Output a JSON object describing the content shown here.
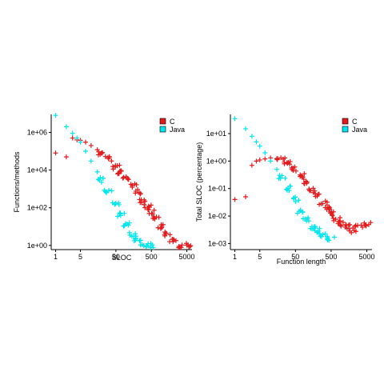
{
  "chart_data": [
    {
      "type": "scatter",
      "xlabel": "SLOC",
      "ylabel": "Functions/methods",
      "x_scale": "log",
      "y_scale": "log",
      "xlim": [
        0.75,
        7000
      ],
      "ylim": [
        0.6,
        9000000
      ],
      "x_ticks": [
        {
          "v": 1,
          "label": "1"
        },
        {
          "v": 5,
          "label": "5"
        },
        {
          "v": 50,
          "label": "50"
        },
        {
          "v": 500,
          "label": "500"
        },
        {
          "v": 5000,
          "label": "5000"
        }
      ],
      "y_ticks": [
        {
          "v": 1,
          "label": "1e+00"
        },
        {
          "v": 100,
          "label": "1e+02"
        },
        {
          "v": 10000,
          "label": "1e+04"
        },
        {
          "v": 1000000,
          "label": "1e+06"
        }
      ],
      "legend_position": "top-right",
      "series": [
        {
          "name": "C",
          "color": "#e31a1c",
          "marker": "+",
          "points": [
            [
              1,
              80000
            ],
            [
              2,
              50000
            ],
            [
              3,
              500000
            ],
            [
              4,
              400000
            ],
            [
              5,
              380000
            ],
            [
              7,
              300000
            ],
            [
              10,
              200000
            ],
            [
              15,
              120000
            ],
            [
              20,
              80000
            ],
            [
              30,
              40000
            ],
            [
              50,
              15000
            ],
            [
              70,
              8000
            ],
            [
              100,
              3500
            ],
            [
              150,
              1500
            ],
            [
              200,
              700
            ],
            [
              300,
              250
            ],
            [
              400,
              120
            ],
            [
              500,
              60
            ],
            [
              700,
              25
            ],
            [
              1000,
              10
            ],
            [
              1500,
              4
            ],
            [
              2000,
              2
            ],
            [
              3000,
              1
            ],
            [
              5000,
              1
            ]
          ]
        },
        {
          "name": "Java",
          "color": "#00e5ee",
          "marker": "+",
          "points": [
            [
              1,
              8000000
            ],
            [
              2,
              2000000
            ],
            [
              3,
              900000
            ],
            [
              4,
              500000
            ],
            [
              5,
              300000
            ],
            [
              7,
              100000
            ],
            [
              10,
              30000
            ],
            [
              15,
              8000
            ],
            [
              20,
              3000
            ],
            [
              30,
              800
            ],
            [
              50,
              150
            ],
            [
              70,
              40
            ],
            [
              100,
              12
            ],
            [
              150,
              4
            ],
            [
              200,
              2
            ],
            [
              300,
              1
            ],
            [
              500,
              1
            ]
          ]
        }
      ]
    },
    {
      "type": "scatter",
      "xlabel": "Function length",
      "ylabel": "Total SLOC (percentage)",
      "x_scale": "log",
      "y_scale": "log",
      "xlim": [
        0.75,
        7000
      ],
      "ylim": [
        0.0006,
        50
      ],
      "x_ticks": [
        {
          "v": 1,
          "label": "1"
        },
        {
          "v": 5,
          "label": "5"
        },
        {
          "v": 50,
          "label": "50"
        },
        {
          "v": 500,
          "label": "500"
        },
        {
          "v": 5000,
          "label": "5000"
        }
      ],
      "y_ticks": [
        {
          "v": 0.001,
          "label": "1e-03"
        },
        {
          "v": 0.01,
          "label": "1e-02"
        },
        {
          "v": 0.1,
          "label": "1e-01"
        },
        {
          "v": 1,
          "label": "1e+00"
        },
        {
          "v": 10,
          "label": "1e+01"
        }
      ],
      "legend_position": "top-right",
      "series": [
        {
          "name": "C",
          "color": "#e31a1c",
          "marker": "+",
          "points": [
            [
              1,
              0.04
            ],
            [
              2,
              0.05
            ],
            [
              3,
              0.7
            ],
            [
              4,
              1.0
            ],
            [
              5,
              1.1
            ],
            [
              7,
              1.2
            ],
            [
              10,
              1.3
            ],
            [
              15,
              1.2
            ],
            [
              20,
              1.1
            ],
            [
              30,
              0.8
            ],
            [
              50,
              0.5
            ],
            [
              70,
              0.3
            ],
            [
              100,
              0.18
            ],
            [
              150,
              0.1
            ],
            [
              200,
              0.06
            ],
            [
              300,
              0.03
            ],
            [
              400,
              0.02
            ],
            [
              500,
              0.012
            ],
            [
              700,
              0.008
            ],
            [
              1000,
              0.005
            ],
            [
              1500,
              0.004
            ],
            [
              2000,
              0.003
            ],
            [
              3000,
              0.004
            ],
            [
              5000,
              0.005
            ]
          ]
        },
        {
          "name": "Java",
          "color": "#00e5ee",
          "marker": "+",
          "points": [
            [
              1,
              35
            ],
            [
              2,
              15
            ],
            [
              3,
              8
            ],
            [
              4,
              5
            ],
            [
              5,
              3.5
            ],
            [
              7,
              2
            ],
            [
              10,
              1
            ],
            [
              15,
              0.5
            ],
            [
              20,
              0.25
            ],
            [
              30,
              0.1
            ],
            [
              50,
              0.04
            ],
            [
              70,
              0.015
            ],
            [
              100,
              0.008
            ],
            [
              150,
              0.004
            ],
            [
              200,
              0.003
            ],
            [
              300,
              0.002
            ],
            [
              500,
              0.0015
            ]
          ]
        }
      ]
    }
  ]
}
